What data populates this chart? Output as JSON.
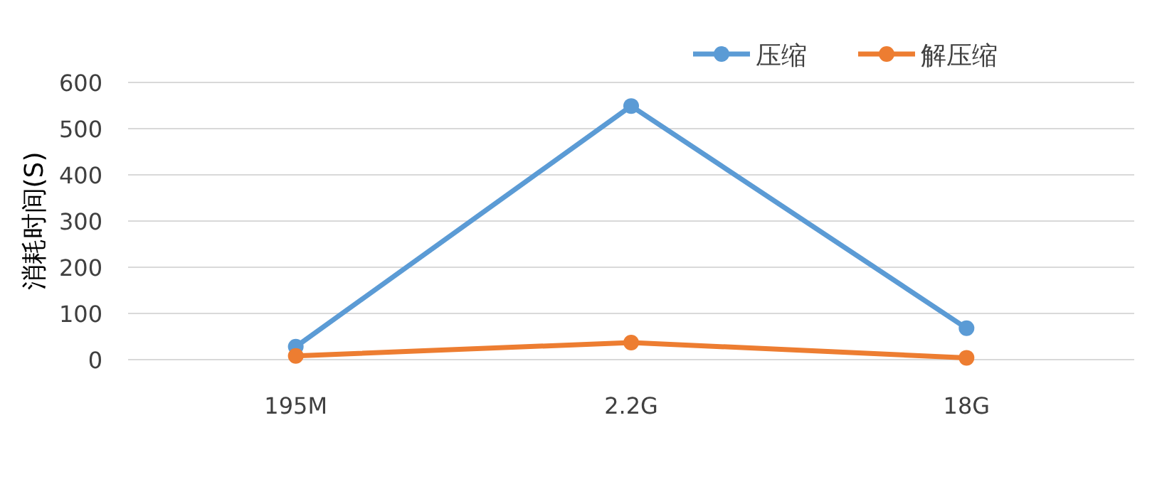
{
  "chart_data": {
    "type": "line",
    "ylabel": "消耗时间(S)",
    "categories": [
      "195M",
      "2.2G",
      "18G"
    ],
    "series": [
      {
        "name": "压缩",
        "color": "#5b9bd5",
        "values": [
          28,
          549,
          68
        ]
      },
      {
        "name": "解压缩",
        "color": "#ed7d31",
        "values": [
          8,
          37,
          4
        ]
      }
    ],
    "ylim": [
      0,
      600
    ],
    "yticks": [
      0,
      100,
      200,
      300,
      400,
      500,
      600
    ],
    "grid": "y",
    "legend": "top right",
    "marker": "circle",
    "line_style": "solid"
  }
}
